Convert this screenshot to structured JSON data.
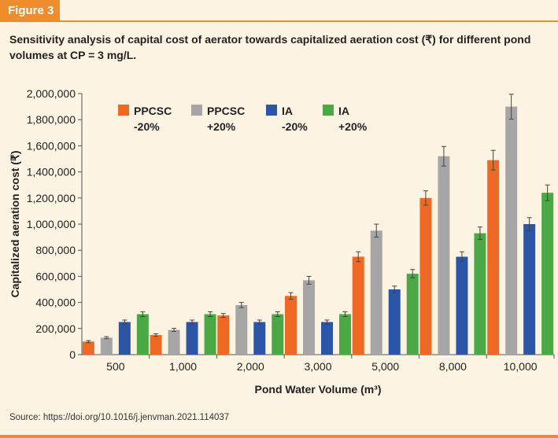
{
  "figure_label": "Figure 3",
  "source": "Source: https://doi.org/10.1016/j.jenvman.2021.114037",
  "chart_data": {
    "type": "bar",
    "title": "Sensitivity analysis of capital cost of aerator towards capitalized aeration cost (₹) for different pond volumes at CP = 3 mg/L.",
    "xlabel": "Pond Water Volume (m³)",
    "ylabel": "Capitalized aeration cost (₹)",
    "ylim": [
      0,
      2000000
    ],
    "yticks": [
      "0",
      "200,000",
      "400,000",
      "600,000",
      "800,000",
      "1,000,000",
      "1,200,000",
      "1,400,000",
      "1,600,000",
      "1,800,000",
      "2,000,000"
    ],
    "categories": [
      "500",
      "1,000",
      "2,000",
      "3,000",
      "5,000",
      "8,000",
      "10,000"
    ],
    "legend_position": "top-left",
    "error_bars": true,
    "series": [
      {
        "name_line1": "PPCSC",
        "name_line2": "-20%",
        "color": "#ee6a24",
        "values": [
          100000,
          150000,
          300000,
          450000,
          750000,
          1200000,
          1490000
        ],
        "errors": [
          8000,
          10000,
          15000,
          25000,
          38000,
          55000,
          75000
        ]
      },
      {
        "name_line1": "PPCSC",
        "name_line2": "+20%",
        "color": "#a5a5a5",
        "values": [
          130000,
          190000,
          380000,
          570000,
          950000,
          1520000,
          1900000
        ],
        "errors": [
          8000,
          12000,
          20000,
          30000,
          50000,
          75000,
          95000
        ]
      },
      {
        "name_line1": "IA",
        "name_line2": "-20%",
        "color": "#2b56a8",
        "values": [
          250000,
          250000,
          250000,
          250000,
          500000,
          750000,
          1000000
        ],
        "errors": [
          15000,
          15000,
          15000,
          15000,
          25000,
          38000,
          50000
        ]
      },
      {
        "name_line1": "IA",
        "name_line2": "+20%",
        "color": "#4aa845",
        "values": [
          310000,
          310000,
          310000,
          310000,
          620000,
          930000,
          1240000
        ],
        "errors": [
          18000,
          18000,
          18000,
          18000,
          32000,
          48000,
          60000
        ]
      }
    ]
  }
}
